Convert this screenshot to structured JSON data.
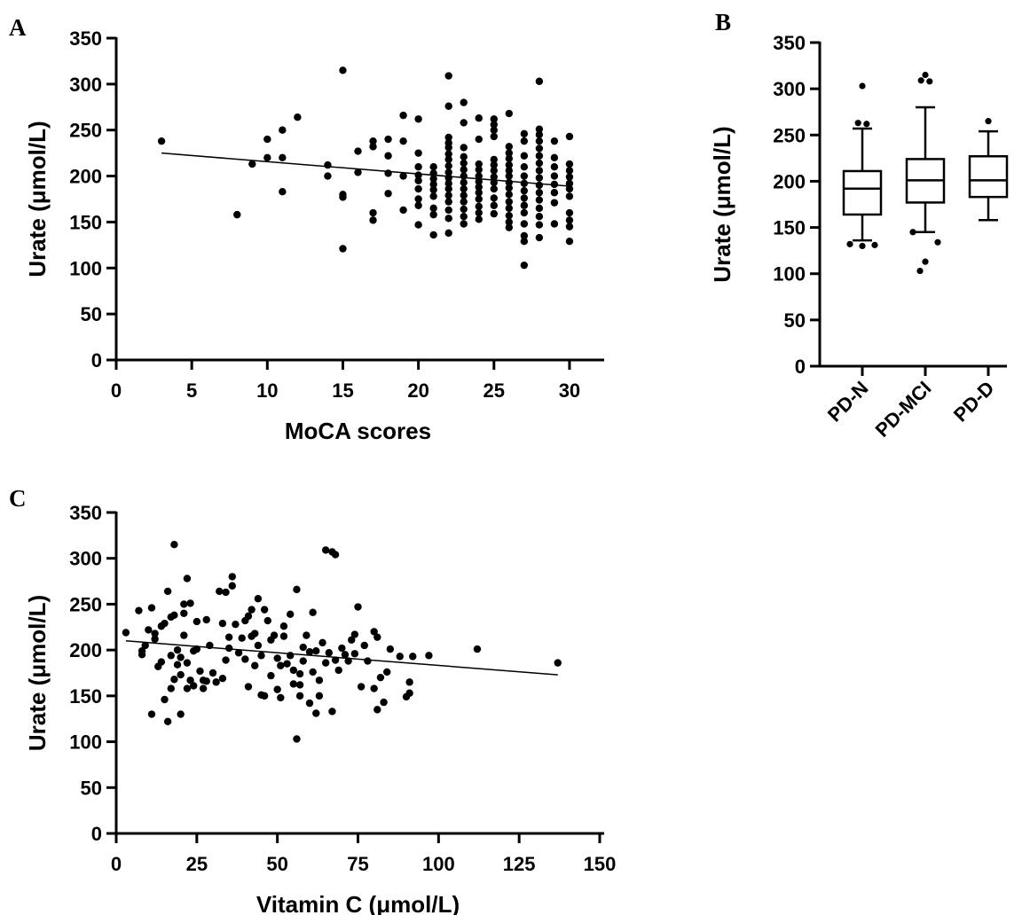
{
  "chart_data": [
    {
      "panel": "A",
      "type": "scatter",
      "xlabel": "MoCA scores",
      "ylabel": "Urate (μmol/L)",
      "xlim": [
        0,
        32
      ],
      "ylim": [
        0,
        350
      ],
      "xticks": [
        0,
        5,
        10,
        15,
        20,
        25,
        30
      ],
      "yticks": [
        0,
        50,
        100,
        150,
        200,
        250,
        300,
        350
      ],
      "grid": false,
      "points": [
        [
          3,
          238
        ],
        [
          8,
          158
        ],
        [
          9,
          213
        ],
        [
          10,
          240
        ],
        [
          10,
          220
        ],
        [
          11,
          250
        ],
        [
          11,
          220
        ],
        [
          11,
          183
        ],
        [
          12,
          264
        ],
        [
          14,
          212
        ],
        [
          14,
          200
        ],
        [
          15,
          315
        ],
        [
          15,
          180
        ],
        [
          15,
          177
        ],
        [
          15,
          121
        ],
        [
          16,
          227
        ],
        [
          16,
          204
        ],
        [
          17,
          238
        ],
        [
          17,
          232
        ],
        [
          17,
          160
        ],
        [
          17,
          152
        ],
        [
          18,
          240
        ],
        [
          18,
          222
        ],
        [
          18,
          203
        ],
        [
          18,
          181
        ],
        [
          19,
          266
        ],
        [
          19,
          238
        ],
        [
          19,
          200
        ],
        [
          19,
          163
        ],
        [
          20,
          262
        ],
        [
          20,
          225
        ],
        [
          20,
          210
        ],
        [
          20,
          201
        ],
        [
          20,
          195
        ],
        [
          20,
          186
        ],
        [
          20,
          175
        ],
        [
          20,
          168
        ],
        [
          20,
          147
        ],
        [
          21,
          210
        ],
        [
          21,
          203
        ],
        [
          21,
          197
        ],
        [
          21,
          191
        ],
        [
          21,
          185
        ],
        [
          21,
          178
        ],
        [
          21,
          165
        ],
        [
          21,
          158
        ],
        [
          21,
          136
        ],
        [
          22,
          309
        ],
        [
          22,
          276
        ],
        [
          22,
          242
        ],
        [
          22,
          236
        ],
        [
          22,
          231
        ],
        [
          22,
          224
        ],
        [
          22,
          218
        ],
        [
          22,
          211
        ],
        [
          22,
          204
        ],
        [
          22,
          198
        ],
        [
          22,
          192
        ],
        [
          22,
          186
        ],
        [
          22,
          179
        ],
        [
          22,
          172
        ],
        [
          22,
          163
        ],
        [
          22,
          154
        ],
        [
          22,
          138
        ],
        [
          23,
          280
        ],
        [
          23,
          258
        ],
        [
          23,
          231
        ],
        [
          23,
          221
        ],
        [
          23,
          214
        ],
        [
          23,
          207
        ],
        [
          23,
          200
        ],
        [
          23,
          193
        ],
        [
          23,
          186
        ],
        [
          23,
          179
        ],
        [
          23,
          172
        ],
        [
          23,
          164
        ],
        [
          23,
          156
        ],
        [
          23,
          148
        ],
        [
          24,
          263
        ],
        [
          24,
          240
        ],
        [
          24,
          213
        ],
        [
          24,
          207
        ],
        [
          24,
          200
        ],
        [
          24,
          194
        ],
        [
          24,
          188
        ],
        [
          24,
          182
        ],
        [
          24,
          175
        ],
        [
          24,
          167
        ],
        [
          24,
          160
        ],
        [
          24,
          153
        ],
        [
          25,
          262
        ],
        [
          25,
          256
        ],
        [
          25,
          250
        ],
        [
          25,
          243
        ],
        [
          25,
          218
        ],
        [
          25,
          212
        ],
        [
          25,
          206
        ],
        [
          25,
          199
        ],
        [
          25,
          193
        ],
        [
          25,
          186
        ],
        [
          25,
          176
        ],
        [
          25,
          168
        ],
        [
          25,
          159
        ],
        [
          26,
          268
        ],
        [
          26,
          232
        ],
        [
          26,
          225
        ],
        [
          26,
          219
        ],
        [
          26,
          212
        ],
        [
          26,
          206
        ],
        [
          26,
          200
        ],
        [
          26,
          193
        ],
        [
          26,
          187
        ],
        [
          26,
          180
        ],
        [
          26,
          172
        ],
        [
          26,
          165
        ],
        [
          26,
          157
        ],
        [
          26,
          150
        ],
        [
          26,
          144
        ],
        [
          27,
          246
        ],
        [
          27,
          238
        ],
        [
          27,
          222
        ],
        [
          27,
          210
        ],
        [
          27,
          200
        ],
        [
          27,
          192
        ],
        [
          27,
          184
        ],
        [
          27,
          176
        ],
        [
          27,
          168
        ],
        [
          27,
          160
        ],
        [
          27,
          148
        ],
        [
          27,
          135
        ],
        [
          27,
          129
        ],
        [
          27,
          103
        ],
        [
          28,
          303
        ],
        [
          28,
          251
        ],
        [
          28,
          245
        ],
        [
          28,
          238
        ],
        [
          28,
          230
        ],
        [
          28,
          222
        ],
        [
          28,
          214
        ],
        [
          28,
          206
        ],
        [
          28,
          198
        ],
        [
          28,
          190
        ],
        [
          28,
          182
        ],
        [
          28,
          174
        ],
        [
          28,
          165
        ],
        [
          28,
          156
        ],
        [
          28,
          147
        ],
        [
          28,
          133
        ],
        [
          29,
          238
        ],
        [
          29,
          220
        ],
        [
          29,
          210
        ],
        [
          29,
          200
        ],
        [
          29,
          191
        ],
        [
          29,
          182
        ],
        [
          29,
          171
        ],
        [
          29,
          148
        ],
        [
          30,
          243
        ],
        [
          30,
          213
        ],
        [
          30,
          206
        ],
        [
          30,
          199
        ],
        [
          30,
          192
        ],
        [
          30,
          186
        ],
        [
          30,
          178
        ],
        [
          30,
          160
        ],
        [
          30,
          152
        ],
        [
          30,
          145
        ],
        [
          30,
          129
        ]
      ],
      "fit_line": {
        "x": [
          3,
          30
        ],
        "y": [
          225,
          189
        ]
      }
    },
    {
      "panel": "B",
      "type": "box",
      "ylabel": "Urate (μmol/L)",
      "categories": [
        "PD-N",
        "PD-MCI",
        "PD-D"
      ],
      "ylim": [
        0,
        350
      ],
      "yticks": [
        0,
        50,
        100,
        150,
        200,
        250,
        300,
        350
      ],
      "boxes": [
        {
          "min": 136,
          "q1": 164,
          "median": 192,
          "q3": 211,
          "max": 257,
          "outliers": [
            303,
            263,
            262,
            132,
            131,
            130
          ]
        },
        {
          "min": 145,
          "q1": 177,
          "median": 201,
          "q3": 224,
          "max": 280,
          "outliers": [
            315,
            309,
            308,
            145,
            134,
            113,
            103
          ]
        },
        {
          "min": 158,
          "q1": 183,
          "median": 201,
          "q3": 227,
          "max": 254,
          "outliers": [
            265
          ]
        }
      ]
    },
    {
      "panel": "C",
      "type": "scatter",
      "xlabel": "Vitamin C (μmol/L)",
      "ylabel": "Urate (μmol/L)",
      "xlim": [
        0,
        150
      ],
      "ylim": [
        0,
        350
      ],
      "xticks": [
        0,
        25,
        50,
        75,
        100,
        125,
        150
      ],
      "yticks": [
        0,
        50,
        100,
        150,
        200,
        250,
        300,
        350
      ],
      "grid": false,
      "points": [
        [
          3,
          219
        ],
        [
          7,
          243
        ],
        [
          8,
          195
        ],
        [
          8,
          199
        ],
        [
          9,
          205
        ],
        [
          10,
          222
        ],
        [
          11,
          130
        ],
        [
          11,
          246
        ],
        [
          12,
          212
        ],
        [
          12,
          218
        ],
        [
          13,
          182
        ],
        [
          14,
          187
        ],
        [
          14,
          226
        ],
        [
          15,
          146
        ],
        [
          15,
          229
        ],
        [
          16,
          264
        ],
        [
          16,
          122
        ],
        [
          17,
          236
        ],
        [
          17,
          158
        ],
        [
          17,
          194
        ],
        [
          18,
          315
        ],
        [
          18,
          168
        ],
        [
          18,
          238
        ],
        [
          19,
          184
        ],
        [
          19,
          200
        ],
        [
          20,
          130
        ],
        [
          20,
          192
        ],
        [
          20,
          173
        ],
        [
          21,
          216
        ],
        [
          21,
          240
        ],
        [
          21,
          250
        ],
        [
          22,
          278
        ],
        [
          22,
          186
        ],
        [
          22,
          158
        ],
        [
          23,
          167
        ],
        [
          23,
          251
        ],
        [
          24,
          161
        ],
        [
          24,
          199
        ],
        [
          25,
          201
        ],
        [
          25,
          231
        ],
        [
          26,
          177
        ],
        [
          27,
          167
        ],
        [
          27,
          158
        ],
        [
          28,
          233
        ],
        [
          28,
          166
        ],
        [
          29,
          205
        ],
        [
          30,
          175
        ],
        [
          31,
          165
        ],
        [
          32,
          264
        ],
        [
          33,
          229
        ],
        [
          33,
          169
        ],
        [
          34,
          263
        ],
        [
          34,
          189
        ],
        [
          35,
          214
        ],
        [
          35,
          202
        ],
        [
          36,
          280
        ],
        [
          36,
          270
        ],
        [
          37,
          228
        ],
        [
          38,
          197
        ],
        [
          39,
          213
        ],
        [
          40,
          190
        ],
        [
          40,
          232
        ],
        [
          41,
          160
        ],
        [
          41,
          237
        ],
        [
          42,
          215
        ],
        [
          42,
          244
        ],
        [
          43,
          183
        ],
        [
          43,
          218
        ],
        [
          44,
          256
        ],
        [
          44,
          205
        ],
        [
          45,
          194
        ],
        [
          45,
          151
        ],
        [
          46,
          244
        ],
        [
          46,
          150
        ],
        [
          47,
          232
        ],
        [
          48,
          172
        ],
        [
          48,
          211
        ],
        [
          49,
          216
        ],
        [
          50,
          157
        ],
        [
          50,
          191
        ],
        [
          51,
          183
        ],
        [
          51,
          148
        ],
        [
          52,
          226
        ],
        [
          52,
          215
        ],
        [
          53,
          185
        ],
        [
          54,
          239
        ],
        [
          54,
          194
        ],
        [
          55,
          178
        ],
        [
          55,
          163
        ],
        [
          56,
          266
        ],
        [
          56,
          103
        ],
        [
          57,
          174
        ],
        [
          57,
          162
        ],
        [
          57,
          150
        ],
        [
          58,
          203
        ],
        [
          58,
          188
        ],
        [
          59,
          216
        ],
        [
          60,
          142
        ],
        [
          60,
          198
        ],
        [
          61,
          241
        ],
        [
          61,
          176
        ],
        [
          62,
          131
        ],
        [
          62,
          199
        ],
        [
          63,
          167
        ],
        [
          63,
          150
        ],
        [
          64,
          208
        ],
        [
          65,
          309
        ],
        [
          65,
          186
        ],
        [
          66,
          197
        ],
        [
          67,
          307
        ],
        [
          67,
          133
        ],
        [
          68,
          304
        ],
        [
          68,
          189
        ],
        [
          69,
          178
        ],
        [
          70,
          202
        ],
        [
          71,
          195
        ],
        [
          72,
          188
        ],
        [
          73,
          211
        ],
        [
          74,
          217
        ],
        [
          74,
          196
        ],
        [
          75,
          247
        ],
        [
          76,
          160
        ],
        [
          77,
          205
        ],
        [
          78,
          188
        ],
        [
          80,
          220
        ],
        [
          80,
          158
        ],
        [
          81,
          214
        ],
        [
          81,
          135
        ],
        [
          82,
          170
        ],
        [
          83,
          143
        ],
        [
          84,
          176
        ],
        [
          85,
          201
        ],
        [
          88,
          193
        ],
        [
          90,
          149
        ],
        [
          91,
          165
        ],
        [
          91,
          153
        ],
        [
          92,
          193
        ],
        [
          97,
          194
        ],
        [
          112,
          201
        ],
        [
          137,
          186
        ]
      ],
      "fit_line": {
        "x": [
          3,
          137
        ],
        "y": [
          210,
          173
        ]
      }
    }
  ],
  "labels": {
    "panel_a": "A",
    "panel_b": "B",
    "panel_c": "C"
  }
}
